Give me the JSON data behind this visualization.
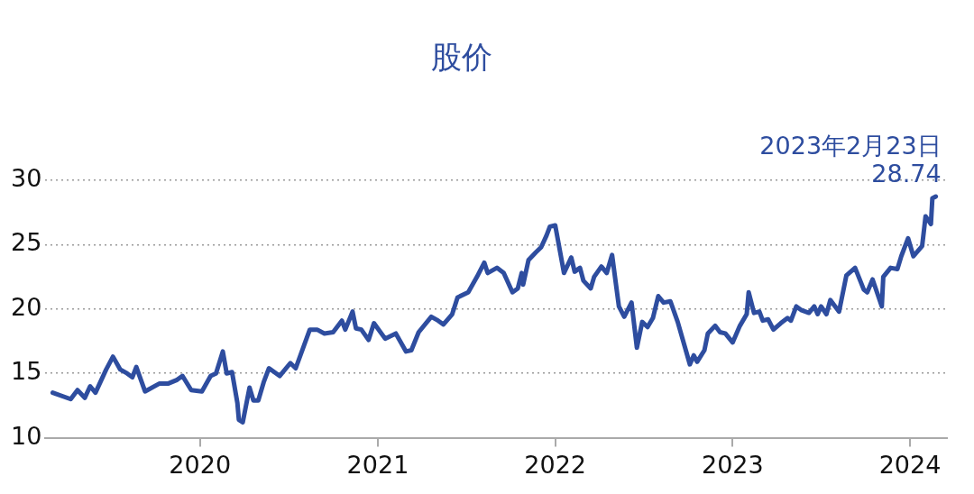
{
  "chart_data": {
    "type": "line",
    "title": "股价",
    "xlim": [
      "2019-02-17",
      "2024-03-17"
    ],
    "xticks": [
      {
        "value": "2020-01-01",
        "label": "2020"
      },
      {
        "value": "2021-01-01",
        "label": "2021"
      },
      {
        "value": "2022-01-01",
        "label": "2022"
      },
      {
        "value": "2023-01-01",
        "label": "2023"
      },
      {
        "value": "2024-01-01",
        "label": "2024"
      }
    ],
    "ylim": [
      10,
      30
    ],
    "yticks": [
      10,
      15,
      20,
      25,
      30
    ],
    "grid": "y",
    "marker": "none",
    "line_style": "solid",
    "annotations": [
      {
        "text": "2023年2月23日\n28.74",
        "x": "2024-02-23",
        "y": 28.74
      }
    ],
    "series": [
      {
        "color": "#2e4d9f",
        "x": [
          "2019-03-04",
          "2019-04-10",
          "2019-04-24",
          "2019-05-09",
          "2019-05-20",
          "2019-05-31",
          "2019-06-22",
          "2019-07-06",
          "2019-07-21",
          "2019-08-04",
          "2019-08-15",
          "2019-08-23",
          "2019-09-10",
          "2019-10-09",
          "2019-10-27",
          "2019-11-15",
          "2019-11-26",
          "2019-12-14",
          "2020-01-05",
          "2020-01-23",
          "2020-02-03",
          "2020-02-17",
          "2020-02-25",
          "2020-03-07",
          "2020-03-18",
          "2020-03-21",
          "2020-03-29",
          "2020-04-12",
          "2020-04-20",
          "2020-04-30",
          "2020-05-11",
          "2020-05-22",
          "2020-06-13",
          "2020-07-05",
          "2020-07-16",
          "2020-08-14",
          "2020-08-29",
          "2020-09-13",
          "2020-10-01",
          "2020-10-19",
          "2020-10-26",
          "2020-11-10",
          "2020-11-17",
          "2020-11-28",
          "2020-12-13",
          "2020-12-24",
          "2021-01-16",
          "2021-02-07",
          "2021-02-28",
          "2021-03-11",
          "2021-03-26",
          "2021-04-21",
          "2021-05-05",
          "2021-05-16",
          "2021-06-03",
          "2021-06-14",
          "2021-07-06",
          "2021-07-24",
          "2021-08-08",
          "2021-08-15",
          "2021-09-03",
          "2021-09-17",
          "2021-10-05",
          "2021-10-16",
          "2021-10-24",
          "2021-10-27",
          "2021-11-07",
          "2021-11-22",
          "2021-12-03",
          "2021-12-14",
          "2021-12-21",
          "2022-01-01",
          "2022-01-19",
          "2022-02-03",
          "2022-02-10",
          "2022-02-21",
          "2022-02-28",
          "2022-03-15",
          "2022-03-22",
          "2022-04-06",
          "2022-04-17",
          "2022-04-28",
          "2022-05-12",
          "2022-05-23",
          "2022-06-07",
          "2022-06-18",
          "2022-06-29",
          "2022-07-10",
          "2022-07-21",
          "2022-08-01",
          "2022-08-12",
          "2022-08-26",
          "2022-09-10",
          "2022-10-05",
          "2022-10-13",
          "2022-10-20",
          "2022-11-04",
          "2022-11-11",
          "2022-11-26",
          "2022-12-06",
          "2022-12-17",
          "2023-01-01",
          "2023-01-16",
          "2023-01-30",
          "2023-02-03",
          "2023-02-14",
          "2023-02-25",
          "2023-03-04",
          "2023-03-15",
          "2023-03-26",
          "2023-04-10",
          "2023-04-24",
          "2023-05-01",
          "2023-05-12",
          "2023-05-23",
          "2023-06-07",
          "2023-06-18",
          "2023-06-25",
          "2023-07-02",
          "2023-07-13",
          "2023-07-21",
          "2023-08-08",
          "2023-08-23",
          "2023-09-10",
          "2023-09-28",
          "2023-10-05",
          "2023-10-16",
          "2023-11-04",
          "2023-11-07",
          "2023-11-22",
          "2023-12-06",
          "2023-12-14",
          "2023-12-28",
          "2024-01-08",
          "2024-01-26",
          "2024-02-02",
          "2024-02-13",
          "2024-02-16",
          "2024-02-23"
        ],
        "values": [
          13.5,
          13.0,
          13.7,
          13.1,
          14.0,
          13.5,
          15.3,
          16.3,
          15.3,
          15.0,
          14.7,
          15.5,
          13.6,
          14.2,
          14.2,
          14.5,
          14.8,
          13.7,
          13.6,
          14.8,
          15.0,
          16.7,
          15.0,
          15.1,
          12.7,
          11.4,
          11.2,
          13.9,
          12.9,
          12.9,
          14.3,
          15.4,
          14.8,
          15.8,
          15.4,
          18.4,
          18.4,
          18.1,
          18.2,
          19.1,
          18.4,
          19.8,
          18.5,
          18.4,
          17.6,
          18.9,
          17.7,
          18.1,
          16.7,
          16.8,
          18.2,
          19.4,
          19.1,
          18.8,
          19.6,
          20.9,
          21.3,
          22.5,
          23.6,
          22.8,
          23.2,
          22.8,
          21.3,
          21.6,
          22.8,
          21.9,
          23.8,
          24.4,
          24.8,
          25.7,
          26.4,
          26.5,
          22.8,
          24.0,
          22.9,
          23.2,
          22.2,
          21.6,
          22.5,
          23.3,
          22.8,
          24.2,
          20.2,
          19.4,
          20.5,
          17.0,
          19.0,
          18.6,
          19.3,
          21.0,
          20.5,
          20.6,
          19.0,
          15.7,
          16.4,
          15.9,
          16.8,
          18.1,
          18.7,
          18.2,
          18.1,
          17.4,
          18.7,
          19.6,
          21.3,
          19.7,
          19.8,
          19.1,
          19.2,
          18.4,
          18.9,
          19.3,
          19.1,
          20.2,
          19.9,
          19.7,
          20.2,
          19.6,
          20.2,
          19.6,
          20.7,
          19.8,
          22.6,
          23.2,
          21.5,
          21.3,
          22.3,
          20.2,
          22.5,
          23.2,
          23.1,
          24.1,
          25.5,
          24.1,
          24.9,
          27.2,
          26.6,
          28.6,
          28.74
        ]
      }
    ]
  }
}
